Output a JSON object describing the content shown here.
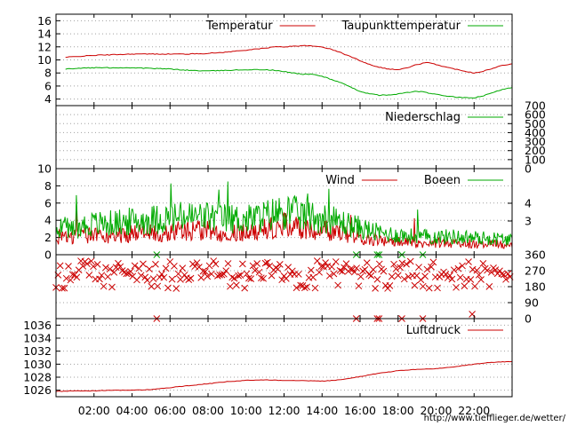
{
  "chart_data": [
    {
      "id": "temp",
      "type": "line",
      "ylim": [
        3,
        17
      ],
      "yticks": [
        "4",
        "6",
        "8",
        "10",
        "12",
        "14",
        "16"
      ],
      "legend": [
        {
          "name": "Temperatur",
          "color": "#cc0000"
        },
        {
          "name": "Taupunkttemperatur",
          "color": "#00aa00"
        }
      ],
      "series": [
        {
          "name": "Temperatur",
          "color": "#cc0000",
          "x": [
            0.5,
            1,
            2,
            3,
            4,
            5,
            6,
            7,
            8,
            9,
            10,
            11,
            11.5,
            12,
            12.5,
            13,
            13.5,
            14,
            14.5,
            15,
            15.5,
            16,
            16.5,
            17,
            17.5,
            18,
            18.5,
            19,
            19.5,
            20,
            20.5,
            21,
            21.5,
            22,
            22.5,
            23,
            23.5,
            24
          ],
          "values": [
            10.4,
            10.5,
            10.7,
            10.8,
            10.9,
            10.9,
            10.9,
            10.9,
            11.0,
            11.2,
            11.5,
            11.8,
            12.0,
            12.0,
            12.1,
            12.2,
            12.1,
            12.0,
            11.6,
            11.1,
            10.5,
            9.9,
            9.3,
            8.9,
            8.6,
            8.5,
            8.8,
            9.3,
            9.6,
            9.3,
            8.9,
            8.6,
            8.3,
            8.0,
            8.3,
            8.7,
            9.2,
            9.4
          ]
        },
        {
          "name": "Taupunkttemperatur",
          "color": "#00aa00",
          "x": [
            0.5,
            1,
            2,
            3,
            4,
            5,
            6,
            7,
            8,
            9,
            10,
            11,
            11.5,
            12,
            12.5,
            13,
            13.5,
            14,
            14.5,
            15,
            15.5,
            16,
            16.5,
            17,
            17.5,
            18,
            18.5,
            19,
            19.5,
            20,
            20.5,
            21,
            21.5,
            22,
            22.5,
            23,
            23.5,
            24
          ],
          "values": [
            8.6,
            8.7,
            8.8,
            8.8,
            8.8,
            8.7,
            8.6,
            8.4,
            8.3,
            8.4,
            8.5,
            8.5,
            8.4,
            8.2,
            8.0,
            7.8,
            7.8,
            7.5,
            7.0,
            6.5,
            5.8,
            5.2,
            4.8,
            4.6,
            4.6,
            4.8,
            5.0,
            5.2,
            5.0,
            4.7,
            4.5,
            4.3,
            4.2,
            4.2,
            4.5,
            5.0,
            5.5,
            5.8
          ]
        }
      ],
      "grid": true
    },
    {
      "id": "rain",
      "type": "line",
      "ylim": [
        0,
        700
      ],
      "yticks": [
        "0",
        "100",
        "200",
        "300",
        "400",
        "500",
        "600",
        "700"
      ],
      "legend": [
        {
          "name": "Niederschlag",
          "color": "#00aa00"
        }
      ],
      "series": [
        {
          "name": "Niederschlag",
          "color": "#00aa00",
          "x": [
            0,
            24
          ],
          "values": [
            0,
            0
          ]
        }
      ],
      "grid": true
    },
    {
      "id": "wind",
      "type": "line",
      "ylim": [
        0,
        10
      ],
      "yticks": [
        "0",
        "2",
        "4",
        "6",
        "8",
        "10"
      ],
      "y2ticks": [
        "3",
        "4"
      ],
      "legend": [
        {
          "name": "Wind",
          "color": "#cc0000"
        },
        {
          "name": "Boeen",
          "color": "#00aa00"
        }
      ],
      "series": [
        {
          "name": "Wind",
          "color": "#cc0000",
          "x": [
            0,
            1,
            2,
            3,
            4,
            5,
            6,
            7,
            8,
            9,
            10,
            11,
            12,
            13,
            14,
            15,
            16,
            17,
            18,
            19,
            20,
            21,
            22,
            23,
            24
          ],
          "values": [
            2.0,
            2.0,
            2.2,
            2.2,
            2.3,
            2.4,
            2.6,
            2.7,
            2.7,
            2.5,
            2.5,
            2.8,
            3.3,
            2.9,
            2.7,
            2.4,
            2.0,
            1.6,
            1.4,
            1.3,
            1.3,
            1.3,
            1.2,
            1.2,
            1.1
          ]
        },
        {
          "name": "Boeen",
          "color": "#00aa00",
          "x": [
            0,
            1,
            2,
            3,
            4,
            5,
            6,
            7,
            8,
            9,
            10,
            11,
            12,
            13,
            14,
            15,
            16,
            17,
            18,
            19,
            20,
            21,
            22,
            23,
            24
          ],
          "values": [
            3.1,
            3.1,
            3.4,
            3.5,
            3.7,
            3.9,
            4.1,
            4.2,
            4.2,
            4.0,
            3.9,
            4.3,
            4.8,
            4.4,
            4.1,
            3.6,
            3.0,
            2.4,
            2.2,
            2.0,
            2.0,
            2.0,
            1.9,
            1.8,
            1.7
          ]
        }
      ],
      "grid": true
    },
    {
      "id": "winddir",
      "type": "scatter",
      "ylim": [
        0,
        360
      ],
      "y2ticks": [
        "0",
        "90",
        "180",
        "270",
        "360"
      ],
      "series": [
        {
          "name": "",
          "color": "#cc0000",
          "marker": "x",
          "direction_bands_deg": [
            225,
            245,
            270,
            290,
            315,
            180
          ],
          "values_deg": [
            240,
            270,
            250,
            280,
            225,
            300,
            230,
            270,
            250,
            260,
            240,
            280,
            290,
            270,
            250,
            240,
            260,
            270,
            230,
            300,
            250,
            270,
            220,
            260
          ]
        },
        {
          "name": "",
          "color": "#00aa00",
          "marker": "x",
          "x": [
            5.3,
            15.8,
            16.9,
            17.0,
            18.2,
            19.3
          ],
          "values": [
            360,
            360,
            360,
            360,
            360,
            360
          ]
        }
      ],
      "grid": true
    },
    {
      "id": "pressure",
      "type": "line",
      "ylim": [
        1025,
        1037
      ],
      "yticks": [
        "1026",
        "1028",
        "1030",
        "1032",
        "1034",
        "1036"
      ],
      "legend": [
        {
          "name": "Luftdruck",
          "color": "#cc0000"
        }
      ],
      "series": [
        {
          "name": "Luftdruck",
          "color": "#cc0000",
          "x": [
            0,
            1,
            2,
            3,
            4,
            5,
            6,
            7,
            8,
            9,
            10,
            11,
            12,
            13,
            14,
            15,
            16,
            17,
            18,
            19,
            20,
            21,
            22,
            23,
            24
          ],
          "values": [
            1025.8,
            1025.9,
            1025.9,
            1026.0,
            1026.0,
            1026.1,
            1026.4,
            1026.7,
            1027.0,
            1027.3,
            1027.5,
            1027.6,
            1027.5,
            1027.5,
            1027.4,
            1027.6,
            1028.1,
            1028.6,
            1029.0,
            1029.2,
            1029.3,
            1029.6,
            1030.0,
            1030.3,
            1030.4
          ]
        }
      ],
      "grid": true
    }
  ],
  "xaxis": {
    "range_hours": [
      0,
      24
    ],
    "tick_labels": [
      "02:00",
      "04:00",
      "06:00",
      "08:00",
      "10:00",
      "12:00",
      "14:00",
      "16:00",
      "18:00",
      "20:00",
      "22:00"
    ]
  },
  "footer": {
    "url": "http://www.tiefflieger.de/wetter/"
  }
}
